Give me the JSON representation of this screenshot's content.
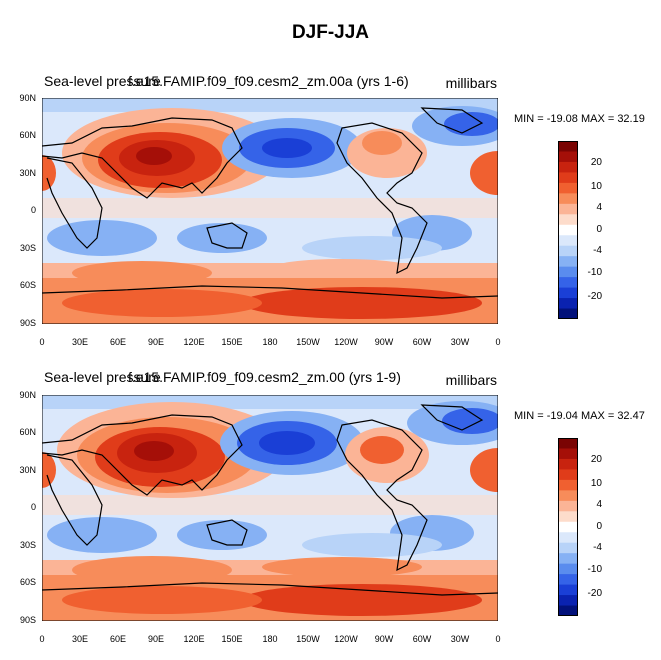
{
  "title": "DJF-JJA",
  "panels": [
    {
      "left_title": "Sea-level pressure",
      "center_title": "f.e15.FAMIP.f09_f09.cesm2_zm.00a (yrs 1-6)",
      "units": "millibars",
      "minmax": "MIN = -19.08 MAX =  32.19"
    },
    {
      "left_title": "Sea-level pressure",
      "center_title": "f.e15.FAMIP.f09_f09.cesm2_zm.00 (yrs 1-9)",
      "units": "millibars",
      "minmax": "MIN = -19.04 MAX =  32.47"
    }
  ],
  "map": {
    "lat_ticks": [
      "90N",
      "60N",
      "30N",
      "0",
      "30S",
      "60S",
      "90S"
    ],
    "lon_ticks": [
      "0",
      "30E",
      "60E",
      "90E",
      "120E",
      "150E",
      "180",
      "150W",
      "120W",
      "90W",
      "60W",
      "30W",
      "0"
    ]
  },
  "colorbar": {
    "labels": [
      "20",
      "10",
      "4",
      "0",
      "-4",
      "-10",
      "-20"
    ],
    "colors": [
      "#7a0403",
      "#a50f08",
      "#c8230f",
      "#e03c1a",
      "#f06030",
      "#f78c5a",
      "#fbb496",
      "#fddccb",
      "#ffffff",
      "#dbe8fb",
      "#b8d3f8",
      "#86b1f4",
      "#5a8cee",
      "#3563e8",
      "#1a3fd6",
      "#0a22b0",
      "#02117a"
    ]
  },
  "colors": {
    "positive_strong": "#c8230f",
    "positive_weak": "#fbb496",
    "negative_weak": "#b8d3f8",
    "negative_strong": "#1a3fd6"
  }
}
